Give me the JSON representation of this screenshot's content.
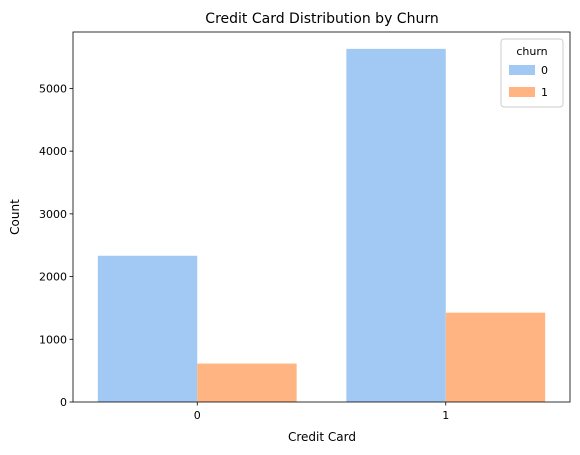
{
  "chart_data": {
    "type": "bar",
    "title": "Credit Card Distribution by Churn",
    "xlabel": "Credit Card",
    "ylabel": "Count",
    "categories": [
      "0",
      "1"
    ],
    "series": [
      {
        "name": "0",
        "values": [
          2332,
          5631
        ],
        "color": "#a1c9f4"
      },
      {
        "name": "1",
        "values": [
          613,
          1424
        ],
        "color": "#ffb482"
      }
    ],
    "ylim": [
      0,
      5900
    ],
    "yticks": [
      0,
      1000,
      2000,
      3000,
      4000,
      5000
    ],
    "grid": false,
    "legend": {
      "title": "churn",
      "placement": "top-right"
    }
  }
}
